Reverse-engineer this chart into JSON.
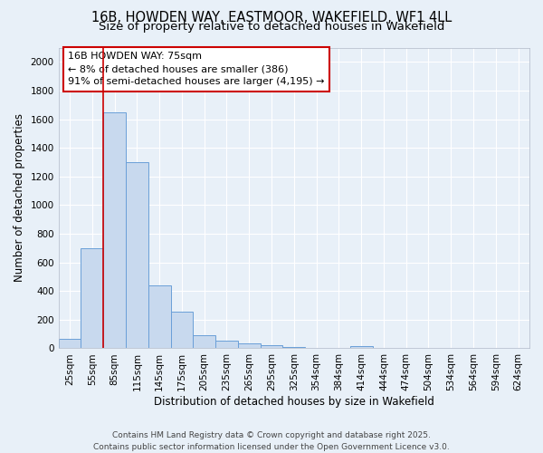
{
  "title_line1": "16B, HOWDEN WAY, EASTMOOR, WAKEFIELD, WF1 4LL",
  "title_line2": "Size of property relative to detached houses in Wakefield",
  "xlabel": "Distribution of detached houses by size in Wakefield",
  "ylabel": "Number of detached properties",
  "categories": [
    "25sqm",
    "55sqm",
    "85sqm",
    "115sqm",
    "145sqm",
    "175sqm",
    "205sqm",
    "235sqm",
    "265sqm",
    "295sqm",
    "325sqm",
    "354sqm",
    "384sqm",
    "414sqm",
    "444sqm",
    "474sqm",
    "504sqm",
    "534sqm",
    "564sqm",
    "594sqm",
    "624sqm"
  ],
  "values": [
    65,
    700,
    1650,
    1300,
    440,
    255,
    90,
    55,
    35,
    20,
    12,
    5,
    0,
    15,
    0,
    0,
    0,
    0,
    0,
    0,
    0
  ],
  "bar_color": "#c8d9ee",
  "bar_edge_color": "#6a9fd8",
  "property_size": "75sqm",
  "annotation_text_line1": "16B HOWDEN WAY: 75sqm",
  "annotation_text_line2": "← 8% of detached houses are smaller (386)",
  "annotation_text_line3": "91% of semi-detached houses are larger (4,195) →",
  "annotation_box_color": "white",
  "annotation_box_edge_color": "#cc0000",
  "ylim": [
    0,
    2100
  ],
  "yticks": [
    0,
    200,
    400,
    600,
    800,
    1000,
    1200,
    1400,
    1600,
    1800,
    2000
  ],
  "footer_line1": "Contains HM Land Registry data © Crown copyright and database right 2025.",
  "footer_line2": "Contains public sector information licensed under the Open Government Licence v3.0.",
  "bg_color": "#e8f0f8",
  "grid_color": "#ffffff",
  "title_fontsize": 10.5,
  "subtitle_fontsize": 9.5,
  "axis_label_fontsize": 8.5,
  "tick_fontsize": 7.5,
  "annotation_fontsize": 8,
  "footer_fontsize": 6.5
}
